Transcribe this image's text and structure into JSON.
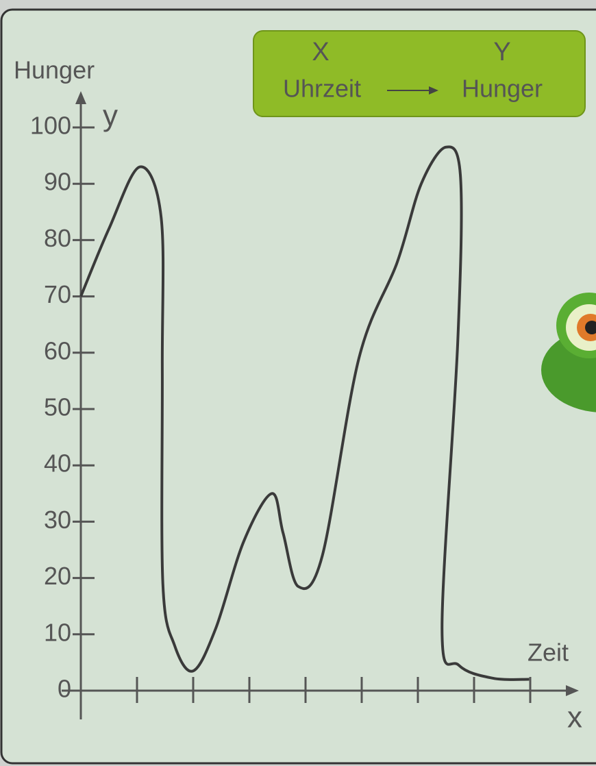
{
  "chart_data": {
    "type": "line",
    "y_axis_title": "Hunger",
    "y_symbol": "y",
    "x_axis_title": "Zeit",
    "x_symbol": "x",
    "legend_box": {
      "x_header": "X",
      "y_header": "Y",
      "x_label": "Uhrzeit",
      "y_label": "Hunger"
    },
    "x": [
      0,
      0.5,
      1.05,
      1.43,
      1.45,
      1.46,
      1.67,
      2,
      2.4,
      2.9,
      3.4,
      3.6,
      3.87,
      4.3,
      4.95,
      5.63,
      6.06,
      6.5,
      6.76,
      6.71,
      6.43,
      6.73,
      7.34,
      7.98
    ],
    "values": [
      70,
      82,
      93,
      84,
      57,
      19,
      8,
      3.5,
      11,
      26.5,
      35,
      28,
      18.5,
      24,
      59,
      76,
      90,
      96.5,
      91,
      62,
      11,
      4.5,
      2.2,
      2
    ],
    "color": "#3a3a3a",
    "xlim": [
      0,
      8.8
    ],
    "xticks": [
      1,
      2,
      3,
      4,
      5,
      6,
      7,
      8
    ],
    "ylim": [
      0,
      100
    ],
    "yticks": [
      0,
      10,
      20,
      30,
      40,
      50,
      60,
      70,
      80,
      90,
      100
    ]
  }
}
